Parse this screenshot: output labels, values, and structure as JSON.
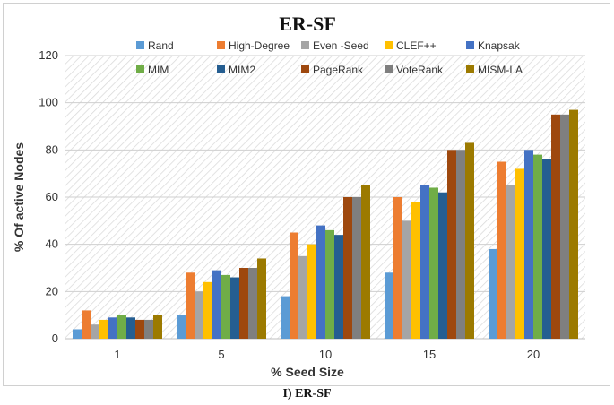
{
  "chart_data": {
    "type": "bar",
    "title": "ER-SF",
    "xlabel": "% Seed Size",
    "ylabel": "% Of active Nodes",
    "ylim": [
      0,
      120
    ],
    "yticks": [
      0,
      20,
      40,
      60,
      80,
      100,
      120
    ],
    "grid": true,
    "legend_position": "top",
    "categories": [
      "1",
      "5",
      "10",
      "15",
      "20"
    ],
    "series": [
      {
        "name": "Rand",
        "color": "#5b9bd5",
        "values": [
          4,
          10,
          18,
          28,
          38
        ]
      },
      {
        "name": "High-Degree",
        "color": "#ed7d31",
        "values": [
          12,
          28,
          45,
          60,
          75
        ]
      },
      {
        "name": "Even -Seed",
        "color": "#a5a5a5",
        "values": [
          6,
          20,
          35,
          50,
          65
        ]
      },
      {
        "name": "CLEF++",
        "color": "#ffc000",
        "values": [
          8,
          24,
          40,
          58,
          72
        ]
      },
      {
        "name": "Knapsak",
        "color": "#4472c4",
        "values": [
          9,
          29,
          48,
          65,
          80
        ]
      },
      {
        "name": "MIM",
        "color": "#70ad47",
        "values": [
          10,
          27,
          46,
          64,
          78
        ]
      },
      {
        "name": "MIM2",
        "color": "#255e91",
        "values": [
          9,
          26,
          44,
          62,
          76
        ]
      },
      {
        "name": "PageRank",
        "color": "#9e480e",
        "values": [
          8,
          30,
          60,
          80,
          95
        ]
      },
      {
        "name": "VoteRank",
        "color": "#7f7f7f",
        "values": [
          8,
          30,
          60,
          80,
          95
        ]
      },
      {
        "name": "MISM-LA",
        "color": "#9c7a00",
        "values": [
          10,
          34,
          65,
          83,
          97
        ]
      }
    ]
  },
  "caption": "I) ER-SF"
}
